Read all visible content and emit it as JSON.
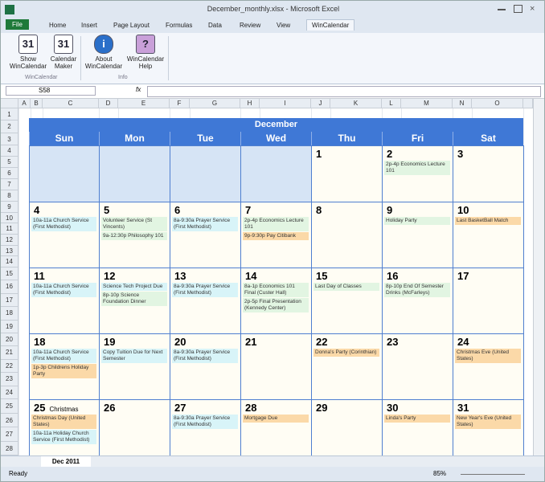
{
  "window": {
    "title": "December_monthly.xlsx - Microsoft Excel"
  },
  "ribbon": {
    "tabs": [
      "File",
      "Home",
      "Insert",
      "Page Layout",
      "Formulas",
      "Data",
      "Review",
      "View",
      "WinCalendar"
    ],
    "buttons": [
      {
        "icon": "31",
        "label": "Show\nWinCalendar"
      },
      {
        "icon": "31",
        "label": "Calendar\nMaker"
      },
      {
        "icon": "i",
        "label": "About\nWinCalendar"
      },
      {
        "icon": "?",
        "label": "WinCalendar\nHelp"
      }
    ],
    "groups": [
      "WinCalendar",
      "Info"
    ]
  },
  "formula_bar": {
    "name_box": "S58",
    "fx": "fx"
  },
  "sheet": {
    "columns": [
      "A",
      "B",
      "C",
      "D",
      "E",
      "F",
      "G",
      "H",
      "I",
      "J",
      "K",
      "L",
      "M",
      "N",
      "O"
    ],
    "rows": [
      1,
      2,
      3,
      4,
      5,
      6,
      7,
      8,
      9,
      10,
      11,
      12,
      13,
      14,
      15,
      16,
      17,
      18,
      19,
      20,
      21,
      22,
      23,
      24,
      25,
      26,
      27,
      28
    ]
  },
  "calendar": {
    "month": "December",
    "weekdays": [
      "Sun",
      "Mon",
      "Tue",
      "Wed",
      "Thu",
      "Fri",
      "Sat"
    ],
    "weeks": [
      [
        null,
        null,
        null,
        null,
        {
          "day": 1,
          "events": []
        },
        {
          "day": 2,
          "events": [
            {
              "text": "2p-4p Economics Lecture 101",
              "color": "#e2f5e2"
            }
          ]
        },
        {
          "day": 3,
          "events": []
        }
      ],
      [
        {
          "day": 4,
          "events": [
            {
              "text": "10a-11a Church Service (First Methodist)",
              "color": "#d8f4f8"
            }
          ]
        },
        {
          "day": 5,
          "events": [
            {
              "text": "Volunteer Service (St Vincents)",
              "color": "#e2f5e2"
            },
            {
              "text": "9a-12:30p Philosophy 101",
              "color": "#e2f5e2"
            }
          ]
        },
        {
          "day": 6,
          "events": [
            {
              "text": "8a-9:30a Prayer Service (First Methodist)",
              "color": "#d8f4f8"
            }
          ]
        },
        {
          "day": 7,
          "events": [
            {
              "text": "2p-4p Economics Lecture 101",
              "color": "#e2f5e2"
            },
            {
              "text": "9p-9:30p Pay Citibank",
              "color": "#fbd9a8"
            }
          ]
        },
        {
          "day": 8,
          "events": []
        },
        {
          "day": 9,
          "events": [
            {
              "text": "Holiday Party",
              "color": "#e2f5e2"
            }
          ]
        },
        {
          "day": 10,
          "events": [
            {
              "text": "Last BasketBall Match",
              "color": "#fbd9a8"
            }
          ]
        }
      ],
      [
        {
          "day": 11,
          "events": [
            {
              "text": "10a-11a Church Service (First Methodist)",
              "color": "#d8f4f8"
            }
          ]
        },
        {
          "day": 12,
          "events": [
            {
              "text": "Science Tech Project Due",
              "color": "#d8f4f8"
            },
            {
              "text": "8p-10p Science Foundation Dinner",
              "color": "#e2f5e2"
            }
          ]
        },
        {
          "day": 13,
          "events": [
            {
              "text": "8a-9:30a Prayer Service (First Methodist)",
              "color": "#d8f4f8"
            }
          ]
        },
        {
          "day": 14,
          "events": [
            {
              "text": "8a-1p Economics 101 Final (Custer Hall)",
              "color": "#e2f5e2"
            },
            {
              "text": "2p-5p Final Presentation (Kennedy Center)",
              "color": "#e2f5e2"
            }
          ]
        },
        {
          "day": 15,
          "events": [
            {
              "text": "Last Day of Classes",
              "color": "#e2f5e2"
            }
          ]
        },
        {
          "day": 16,
          "events": [
            {
              "text": "8p-10p End Of Semester Drinks (McFarleys)",
              "color": "#e2f5e2"
            }
          ]
        },
        {
          "day": 17,
          "events": []
        }
      ],
      [
        {
          "day": 18,
          "events": [
            {
              "text": "10a-11a Church Service (First Methodist)",
              "color": "#d8f4f8"
            },
            {
              "text": "1p-3p Childrens Holiday Party",
              "color": "#fbd9a8"
            }
          ]
        },
        {
          "day": 19,
          "events": [
            {
              "text": "Copy Tuition Due for Next Semester",
              "color": "#d8f4f8"
            }
          ]
        },
        {
          "day": 20,
          "events": [
            {
              "text": "8a-9:30a Prayer Service (First Methodist)",
              "color": "#d8f4f8"
            }
          ]
        },
        {
          "day": 21,
          "events": []
        },
        {
          "day": 22,
          "events": [
            {
              "text": "Donna's Party (Corinthian)",
              "color": "#fbd9a8"
            }
          ]
        },
        {
          "day": 23,
          "events": []
        },
        {
          "day": 24,
          "events": [
            {
              "text": "Christmas Eve (United States)",
              "color": "#fbd9a8"
            }
          ]
        }
      ],
      [
        {
          "day": 25,
          "note": "Christmas",
          "events": [
            {
              "text": "Christmas Day (United States)",
              "color": "#fbd9a8"
            },
            {
              "text": "10a-11a Holiday Church Service (First Methodist)",
              "color": "#d8f4f8"
            }
          ]
        },
        {
          "day": 26,
          "events": []
        },
        {
          "day": 27,
          "events": [
            {
              "text": "8a-9:30a Prayer Service (First Methodist)",
              "color": "#d8f4f8"
            }
          ]
        },
        {
          "day": 28,
          "events": [
            {
              "text": "Mortgage Due",
              "color": "#fbd9a8"
            }
          ]
        },
        {
          "day": 29,
          "events": []
        },
        {
          "day": 30,
          "events": [
            {
              "text": "Linda's Party",
              "color": "#fbd9a8"
            }
          ]
        },
        {
          "day": 31,
          "events": [
            {
              "text": "New Year's Eve (United States)",
              "color": "#fbd9a8"
            }
          ]
        }
      ]
    ]
  },
  "status": {
    "ready": "Ready",
    "sheet_tab": "Dec 2011",
    "zoom": "85%"
  }
}
